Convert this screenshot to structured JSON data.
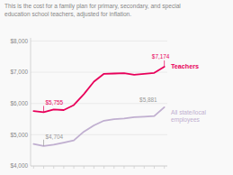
{
  "chart_data": {
    "type": "line",
    "subtitle": "This is the cost for a family plan for primary, secondary, and special\neducation school teachers, adjusted for inflation.",
    "x": [
      0,
      1,
      2,
      3,
      4,
      5,
      6,
      7,
      8,
      9,
      10,
      11,
      12,
      13
    ],
    "series": [
      {
        "name": "Teachers",
        "color": "#e8005a",
        "values": [
          5755,
          5720,
          5810,
          5790,
          5950,
          6300,
          6700,
          6950,
          6960,
          6970,
          6920,
          6950,
          6980,
          7174
        ]
      },
      {
        "name": "All state/local\nemployees",
        "color": "#c0afd0",
        "values": [
          4704,
          4640,
          4680,
          4750,
          4820,
          5100,
          5300,
          5450,
          5500,
          5520,
          5560,
          5580,
          5600,
          5881
        ]
      }
    ],
    "annotations": [
      {
        "text": "$5,755",
        "series": 0,
        "x": 1,
        "color": "#e8005a"
      },
      {
        "text": "$4,704",
        "series": 1,
        "x": 1,
        "color": "#999999"
      },
      {
        "text": "$7,174",
        "series": 0,
        "x": 13,
        "color": "#e8005a"
      },
      {
        "text": "$5,881",
        "series": 1,
        "x": 13,
        "color": "#999999"
      }
    ],
    "xlim": [
      -0.3,
      13.3
    ],
    "xticks": [
      0,
      1,
      2,
      3,
      4,
      5,
      6,
      7,
      8,
      9,
      10,
      11,
      12,
      13
    ],
    "ylim": [
      4000,
      8100
    ],
    "yticks": [
      {
        "value": 4000,
        "label": "$4,000"
      },
      {
        "value": 5000,
        "label": "$5,000"
      },
      {
        "value": 6000,
        "label": "$6,000"
      },
      {
        "value": 7000,
        "label": "$7,000"
      },
      {
        "value": 8000,
        "label": "$8,000"
      }
    ],
    "grid": true,
    "tick_labels": "y"
  }
}
